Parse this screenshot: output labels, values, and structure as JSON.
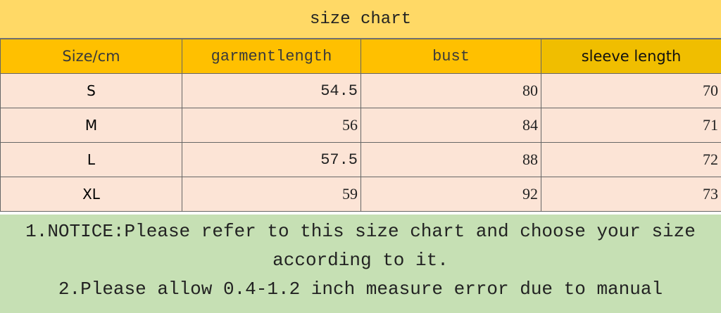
{
  "title": "size chart",
  "headers": [
    "Size/cm",
    "garmentlength",
    "bust",
    "sleeve length"
  ],
  "rows": [
    {
      "size": "S",
      "garment_length": "54.5",
      "bust": "80",
      "sleeve_length": "70"
    },
    {
      "size": "M",
      "garment_length": "56",
      "bust": "84",
      "sleeve_length": "71"
    },
    {
      "size": "L",
      "garment_length": "57.5",
      "bust": "88",
      "sleeve_length": "72"
    },
    {
      "size": "XL",
      "garment_length": "59",
      "bust": "92",
      "sleeve_length": "73"
    }
  ],
  "notice": {
    "line1": "1.NOTICE:Please refer to this size chart and choose your size",
    "line2": "according to it.",
    "line3": "2.Please allow 0.4-1.2 inch measure error due to manual"
  },
  "colors": {
    "title_bg": "#FFD966",
    "header_bg": "#FFC000",
    "row_bg": "#FCE4D6",
    "notice_bg": "#C6E0B4"
  }
}
